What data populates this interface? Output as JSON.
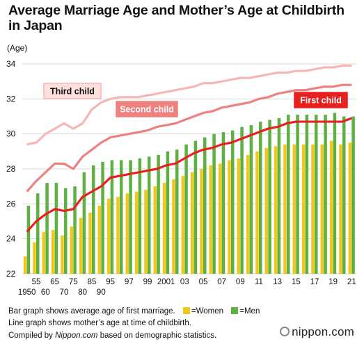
{
  "title": "Average Marriage Age and Mother’s Age at Childbirth in Japan",
  "footer": {
    "bar_note": "Bar graph shows average age of first marriage.",
    "women_label": "=Women",
    "men_label": "=Men",
    "line_note": "Line graph shows mother’s age at time of childbirth.",
    "credit_prefix": "Compiled by ",
    "credit_source": "Nippon.com",
    "credit_suffix": " based on demographic statistics.",
    "brand": "nippon.com"
  },
  "colors": {
    "women": "#f2c81c",
    "men": "#5fb043",
    "first_child": "#e8201f",
    "second_child": "#ee8080",
    "third_child": "#f6b6b3",
    "grid": "#d9d9d9"
  },
  "chart_data": {
    "type": "bar+line",
    "ylabel": "(Age)",
    "ylim": [
      22,
      34
    ],
    "yticks": [
      22,
      24,
      26,
      28,
      30,
      32,
      34
    ],
    "years": [
      1950,
      1955,
      1960,
      1965,
      1970,
      1975,
      1980,
      1985,
      1990,
      1995,
      1996,
      1997,
      1998,
      1999,
      2000,
      2001,
      2002,
      2003,
      2004,
      2005,
      2006,
      2007,
      2008,
      2009,
      2010,
      2011,
      2012,
      2013,
      2014,
      2015,
      2016,
      2017,
      2018,
      2019,
      2020,
      2021
    ],
    "xtick_labels_row1": [
      {
        "year": 1955,
        "label": "55"
      },
      {
        "year": 1965,
        "label": "65"
      },
      {
        "year": 1975,
        "label": "75"
      },
      {
        "year": 1985,
        "label": "85"
      },
      {
        "year": 1995,
        "label": "95"
      },
      {
        "year": 1997,
        "label": "97"
      },
      {
        "year": 1999,
        "label": "99"
      },
      {
        "year": 2001,
        "label": "2001"
      },
      {
        "year": 2003,
        "label": "03"
      },
      {
        "year": 2005,
        "label": "05"
      },
      {
        "year": 2007,
        "label": "07"
      },
      {
        "year": 2009,
        "label": "09"
      },
      {
        "year": 2011,
        "label": "11"
      },
      {
        "year": 2013,
        "label": "13"
      },
      {
        "year": 2015,
        "label": "15"
      },
      {
        "year": 2017,
        "label": "17"
      },
      {
        "year": 2019,
        "label": "19"
      },
      {
        "year": 2021,
        "label": "21"
      }
    ],
    "xtick_labels_row2": [
      {
        "year": 1950,
        "label": "1950"
      },
      {
        "year": 1960,
        "label": "60"
      },
      {
        "year": 1970,
        "label": "70"
      },
      {
        "year": 1980,
        "label": "80"
      },
      {
        "year": 1990,
        "label": "90"
      }
    ],
    "bar_series": [
      {
        "name": "=Women",
        "values": [
          23.0,
          23.8,
          24.4,
          24.5,
          24.2,
          24.7,
          25.2,
          25.5,
          25.9,
          26.3,
          26.4,
          26.6,
          26.7,
          26.8,
          27.0,
          27.2,
          27.4,
          27.6,
          27.8,
          28.0,
          28.2,
          28.3,
          28.5,
          28.6,
          28.8,
          29.0,
          29.2,
          29.3,
          29.4,
          29.4,
          29.4,
          29.4,
          29.4,
          29.6,
          29.4,
          29.5
        ]
      },
      {
        "name": "=Men",
        "values": [
          25.9,
          26.6,
          27.2,
          27.2,
          26.9,
          27.0,
          27.8,
          28.2,
          28.4,
          28.5,
          28.5,
          28.5,
          28.6,
          28.7,
          28.8,
          29.0,
          29.1,
          29.4,
          29.6,
          29.8,
          30.0,
          30.1,
          30.2,
          30.4,
          30.5,
          30.7,
          30.8,
          30.9,
          31.1,
          31.1,
          31.1,
          31.1,
          31.1,
          31.2,
          31.0,
          31.0
        ]
      }
    ],
    "line_series": [
      {
        "name": "First child",
        "values": [
          24.4,
          25.0,
          25.4,
          25.7,
          25.6,
          25.7,
          26.4,
          26.7,
          27.0,
          27.5,
          27.6,
          27.7,
          27.8,
          27.9,
          28.0,
          28.2,
          28.3,
          28.6,
          28.9,
          29.1,
          29.2,
          29.4,
          29.5,
          29.7,
          29.9,
          30.1,
          30.3,
          30.4,
          30.6,
          30.7,
          30.7,
          30.7,
          30.7,
          30.7,
          30.7,
          30.9
        ]
      },
      {
        "name": "Second child",
        "values": [
          26.7,
          27.3,
          27.8,
          28.3,
          28.3,
          28.0,
          28.7,
          29.1,
          29.5,
          29.8,
          29.9,
          30.0,
          30.1,
          30.2,
          30.4,
          30.5,
          30.6,
          30.8,
          31.0,
          31.2,
          31.3,
          31.5,
          31.6,
          31.7,
          31.8,
          32.0,
          32.1,
          32.3,
          32.4,
          32.5,
          32.5,
          32.6,
          32.7,
          32.7,
          32.8,
          32.8
        ]
      },
      {
        "name": "Third child",
        "values": [
          29.4,
          29.5,
          30.0,
          30.3,
          30.6,
          30.3,
          30.6,
          31.4,
          31.8,
          32.0,
          32.1,
          32.1,
          32.1,
          32.2,
          32.3,
          32.4,
          32.5,
          32.6,
          32.7,
          32.9,
          32.9,
          33.0,
          33.1,
          33.2,
          33.2,
          33.3,
          33.4,
          33.5,
          33.5,
          33.6,
          33.6,
          33.7,
          33.8,
          33.8,
          33.9,
          33.9
        ]
      }
    ],
    "line_labels": [
      "Third child",
      "Second child",
      "First child"
    ]
  }
}
